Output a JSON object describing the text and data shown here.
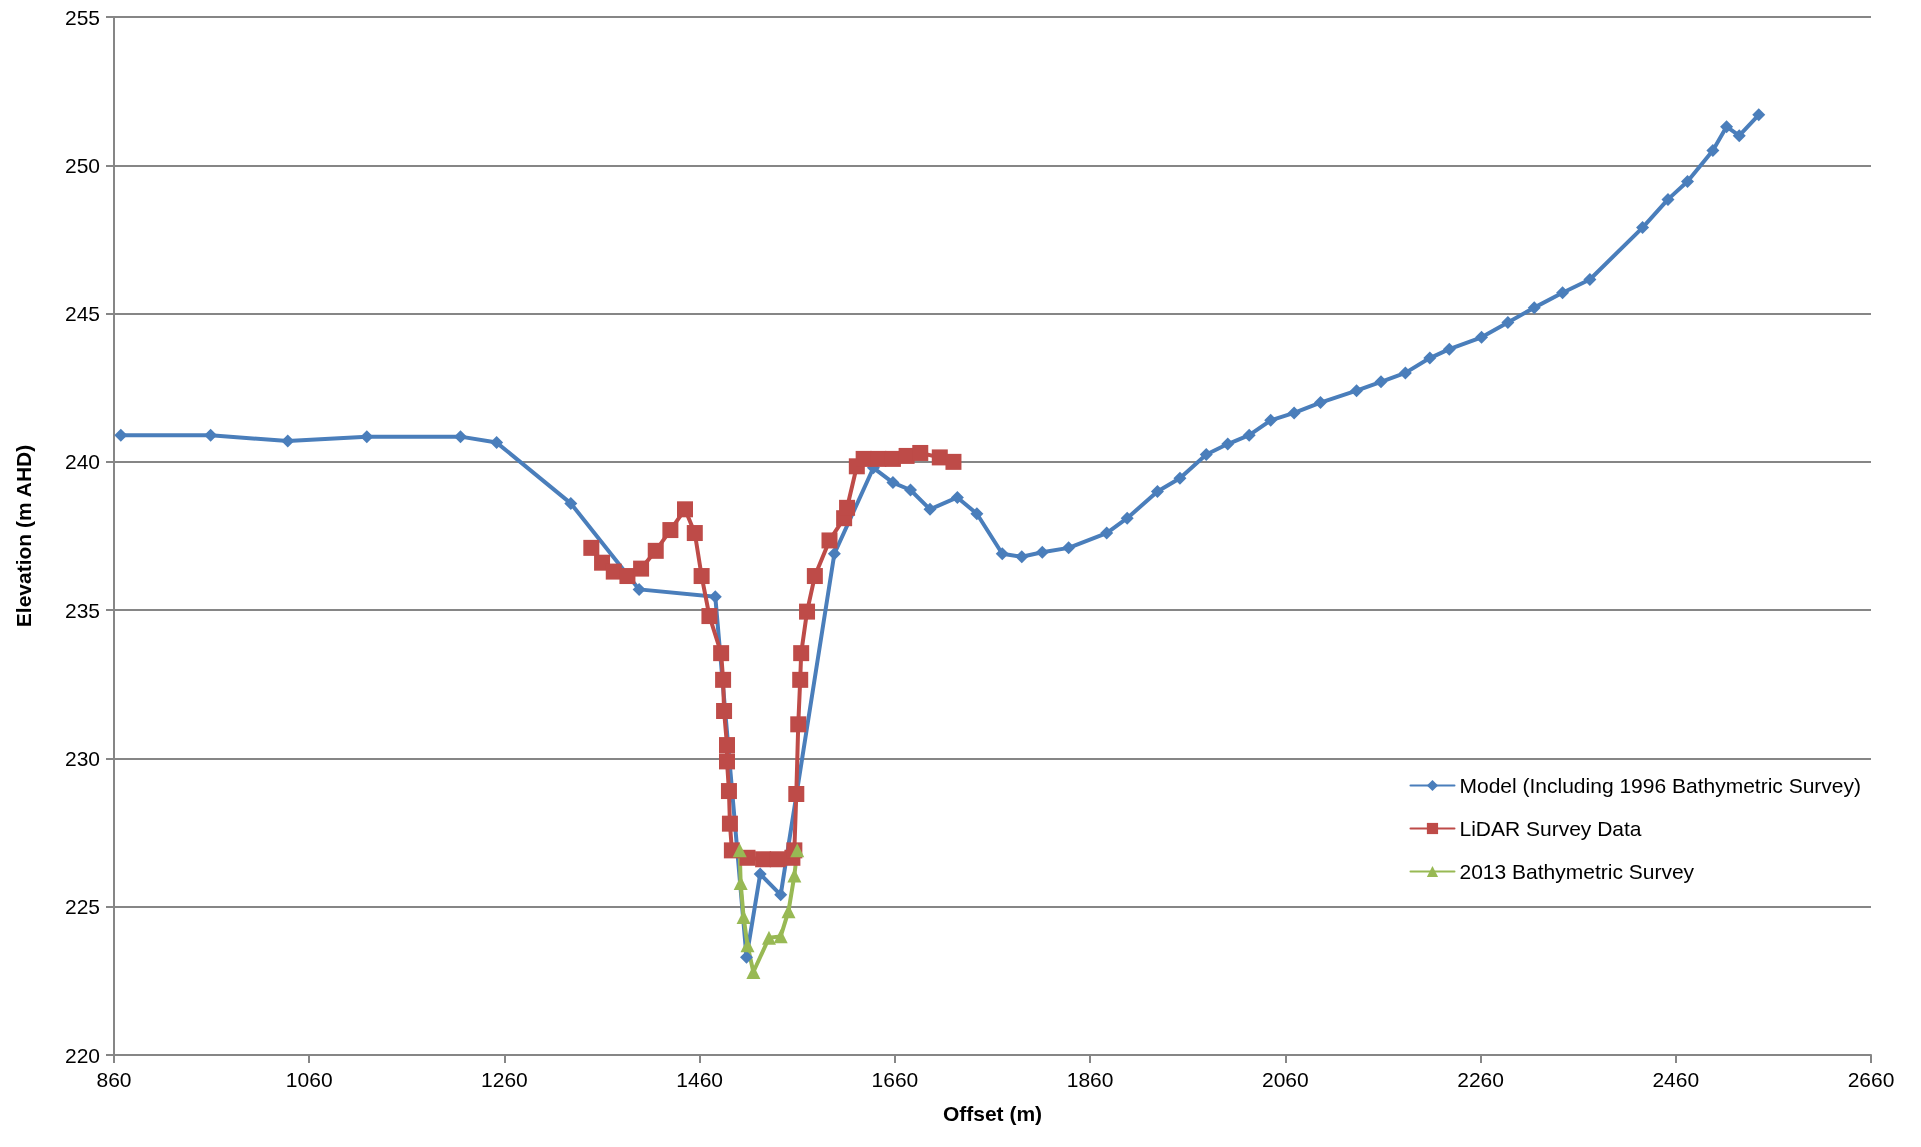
{
  "chart_data": {
    "type": "line",
    "xlabel": "Offset (m)",
    "ylabel": "Elevation (m AHD)",
    "xlim": [
      860,
      2660
    ],
    "xticks": [
      860,
      1060,
      1260,
      1460,
      1660,
      1860,
      2060,
      2260,
      2460,
      2660
    ],
    "ylim": [
      220,
      255
    ],
    "yticks": [
      220,
      225,
      230,
      235,
      240,
      245,
      250,
      255
    ],
    "grid": "y",
    "legend": "bottom right",
    "line_style": "solid",
    "series": [
      {
        "name": "Model (Including 1996 Bathymetric Survey)",
        "color": "#4a7ebb",
        "marker": "diamond",
        "x": [
          867,
          959,
          1038,
          1119,
          1215,
          1252,
          1328,
          1398,
          1476,
          1508,
          1522,
          1543,
          1598,
          1638,
          1658,
          1676,
          1696,
          1724,
          1744,
          1770,
          1790,
          1811,
          1838,
          1877,
          1898,
          1929,
          1952,
          1979,
          2001,
          2023,
          2045,
          2069,
          2096,
          2133,
          2158,
          2183,
          2208,
          2228,
          2261,
          2288,
          2315,
          2344,
          2372,
          2426,
          2452,
          2472,
          2498,
          2512,
          2525,
          2545
        ],
        "values": [
          240.9,
          240.9,
          240.7,
          240.85,
          240.85,
          240.65,
          238.6,
          235.7,
          235.45,
          223.3,
          226.1,
          225.4,
          236.9,
          239.8,
          239.3,
          239.05,
          238.4,
          238.8,
          238.25,
          236.9,
          236.8,
          236.95,
          237.1,
          237.6,
          238.1,
          239.0,
          239.45,
          240.25,
          240.6,
          240.9,
          241.4,
          241.65,
          242.0,
          242.4,
          242.7,
          243.0,
          243.5,
          243.8,
          244.2,
          244.7,
          245.2,
          245.7,
          246.15,
          247.9,
          248.85,
          249.45,
          250.5,
          251.3,
          251.0,
          251.7
        ]
      },
      {
        "name": "LiDAR Survey Data",
        "color": "#be4b48",
        "marker": "square",
        "x": [
          1349,
          1360,
          1372,
          1386,
          1400,
          1415,
          1430,
          1445,
          1455,
          1462,
          1470,
          1482,
          1484,
          1485,
          1488,
          1488,
          1490,
          1491,
          1493,
          1509,
          1525,
          1540,
          1555,
          1557,
          1559,
          1561,
          1563,
          1564,
          1570,
          1578,
          1593,
          1608,
          1611,
          1621,
          1628,
          1643,
          1658,
          1672,
          1686,
          1706,
          1720
        ],
        "values": [
          237.1,
          236.6,
          236.3,
          236.15,
          236.4,
          237.0,
          237.7,
          238.4,
          237.6,
          236.15,
          234.8,
          233.55,
          232.65,
          231.6,
          230.45,
          229.9,
          228.9,
          227.8,
          226.9,
          226.65,
          226.6,
          226.6,
          226.65,
          226.9,
          228.8,
          231.15,
          232.65,
          233.55,
          234.95,
          236.15,
          237.35,
          238.1,
          238.45,
          239.85,
          240.1,
          240.1,
          240.1,
          240.2,
          240.3,
          240.15,
          240.0
        ]
      },
      {
        "name": "2013 Bathymetric Survey",
        "color": "#98b954",
        "marker": "triangle",
        "x": [
          1501,
          1502,
          1505,
          1509,
          1515,
          1531,
          1543,
          1551,
          1557,
          1560
        ],
        "values": [
          226.9,
          225.8,
          224.65,
          223.7,
          222.8,
          223.95,
          224.0,
          224.85,
          226.05,
          226.9
        ]
      }
    ]
  }
}
